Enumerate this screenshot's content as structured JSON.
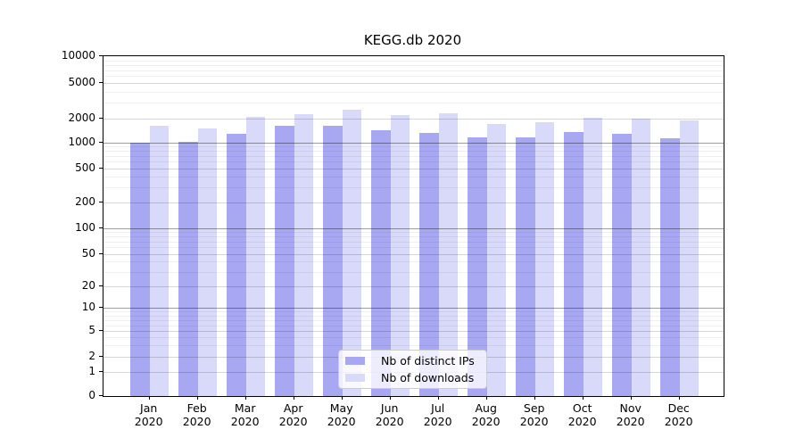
{
  "chart_data": {
    "type": "bar",
    "title": "KEGG.db 2020",
    "categories": [
      "Jan",
      "Feb",
      "Mar",
      "Apr",
      "May",
      "Jun",
      "Jul",
      "Aug",
      "Sep",
      "Oct",
      "Nov",
      "Dec"
    ],
    "category_year": "2020",
    "series": [
      {
        "name": "Nb of distinct IPs",
        "color": "#a7a7f2",
        "values": [
          990,
          1030,
          1290,
          1630,
          1610,
          1430,
          1320,
          1160,
          1170,
          1350,
          1280,
          1140
        ]
      },
      {
        "name": "Nb of downloads",
        "color": "#d9d9f9",
        "values": [
          1630,
          1520,
          2060,
          2230,
          2520,
          2190,
          2290,
          1700,
          1800,
          2040,
          1980,
          1880
        ]
      }
    ],
    "y_axis": {
      "ticks": [
        0,
        1,
        2,
        5,
        10,
        20,
        50,
        100,
        200,
        500,
        1000,
        2000,
        5000,
        10000
      ],
      "scale": "log-like",
      "range": [
        0,
        10000
      ]
    },
    "x_axis": {
      "label_lines": 2
    },
    "legend": {
      "position": "inside-bottom-center",
      "entries": [
        "Nb of distinct IPs",
        "Nb of downloads"
      ]
    },
    "grid": "horizontal major and minor, drawn over bars"
  }
}
